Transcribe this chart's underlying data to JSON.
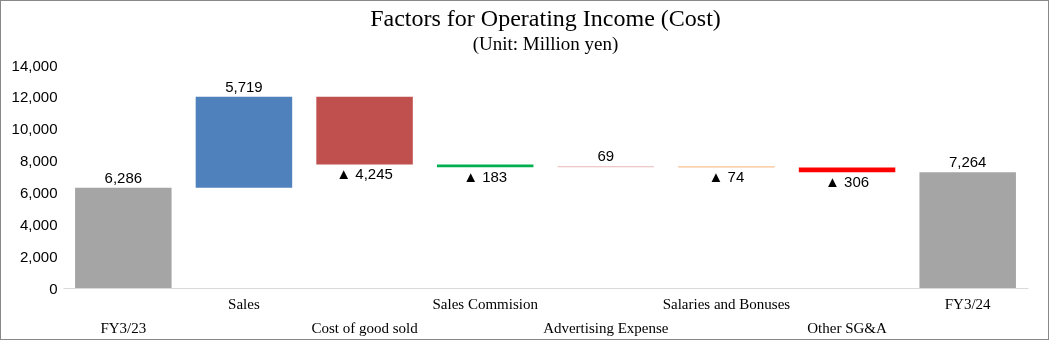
{
  "chart_data": {
    "type": "bar",
    "title": "Factors for Operating Income (Cost)",
    "subtitle": "(Unit: Million yen)",
    "categories": [
      "FY3/23",
      "Sales",
      "Cost of good sold",
      "Sales Commision",
      "Advertising Expense",
      "Salaries and Bonuses",
      "Other SG&A",
      "FY3/24"
    ],
    "values": [
      6286,
      5719,
      -4245,
      -183,
      69,
      -74,
      -306,
      7264
    ],
    "base": [
      0,
      6286,
      12005,
      7760,
      7577,
      7646,
      7572,
      0
    ],
    "colors": [
      "#a5a5a5",
      "#4f81bd",
      "#c0504d",
      "#00b050",
      "#e6b9b8",
      "#fac090",
      "#ff0000",
      "#a5a5a5"
    ],
    "value_labels": [
      "6,286",
      "5,719",
      "▲ 4,245",
      "▲ 183",
      "69",
      "▲ 74",
      "▲ 306",
      "7,264"
    ],
    "ylim": [
      0,
      14000
    ],
    "yticks": [
      {
        "value": 0,
        "label": "0"
      },
      {
        "value": 2000,
        "label": "2,000"
      },
      {
        "value": 4000,
        "label": "4,000"
      },
      {
        "value": 6000,
        "label": "6,000"
      },
      {
        "value": 8000,
        "label": "8,000"
      },
      {
        "value": 10000,
        "label": "10,000"
      },
      {
        "value": 12000,
        "label": "12,000"
      },
      {
        "value": 14000,
        "label": "14,000"
      }
    ]
  }
}
